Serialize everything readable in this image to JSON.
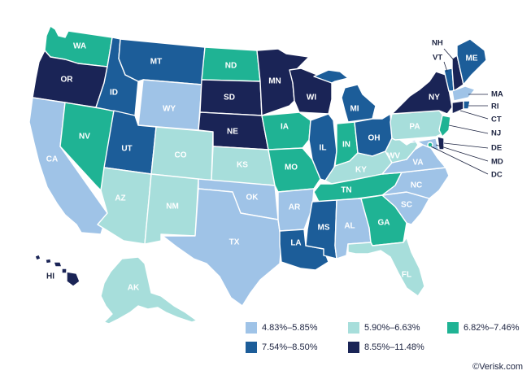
{
  "colors": {
    "band1": "#9fc3e7",
    "band2": "#a7dedb",
    "band3": "#1fb394",
    "band4": "#1c5d99",
    "band5": "#1a2456"
  },
  "legend": [
    {
      "label": "4.83%–5.85%",
      "band": "band1"
    },
    {
      "label": "5.90%–6.63%",
      "band": "band2"
    },
    {
      "label": "6.82%–7.46%",
      "band": "band3"
    },
    {
      "label": "7.54%–8.50%",
      "band": "band4"
    },
    {
      "label": "8.55%–11.48%",
      "band": "band5"
    }
  ],
  "states": {
    "WA": "band3",
    "OR": "band5",
    "CA": "band1",
    "NV": "band3",
    "ID": "band4",
    "MT": "band4",
    "WY": "band1",
    "UT": "band4",
    "AZ": "band2",
    "CO": "band2",
    "NM": "band2",
    "ND": "band3",
    "SD": "band5",
    "NE": "band5",
    "KS": "band2",
    "OK": "band1",
    "TX": "band1",
    "MN": "band5",
    "IA": "band3",
    "MO": "band3",
    "AR": "band1",
    "LA": "band4",
    "WI": "band5",
    "IL": "band4",
    "MI": "band4",
    "IN": "band3",
    "OH": "band4",
    "KY": "band2",
    "TN": "band3",
    "MS": "band4",
    "AL": "band1",
    "GA": "band3",
    "FL": "band2",
    "SC": "band1",
    "NC": "band1",
    "VA": "band1",
    "WV": "band2",
    "PA": "band2",
    "NY": "band5",
    "VT": "band4",
    "NH": "band5",
    "ME": "band4",
    "MA": "band1",
    "RI": "band4",
    "CT": "band5",
    "NJ": "band3",
    "DE": "band5",
    "MD": "band1",
    "DC": "band3",
    "AK": "band2",
    "HI": "band5"
  },
  "callouts": [
    "NH",
    "VT",
    "MA",
    "RI",
    "CT",
    "NJ",
    "DE",
    "MD",
    "DC"
  ],
  "credit": "©Verisk.com"
}
